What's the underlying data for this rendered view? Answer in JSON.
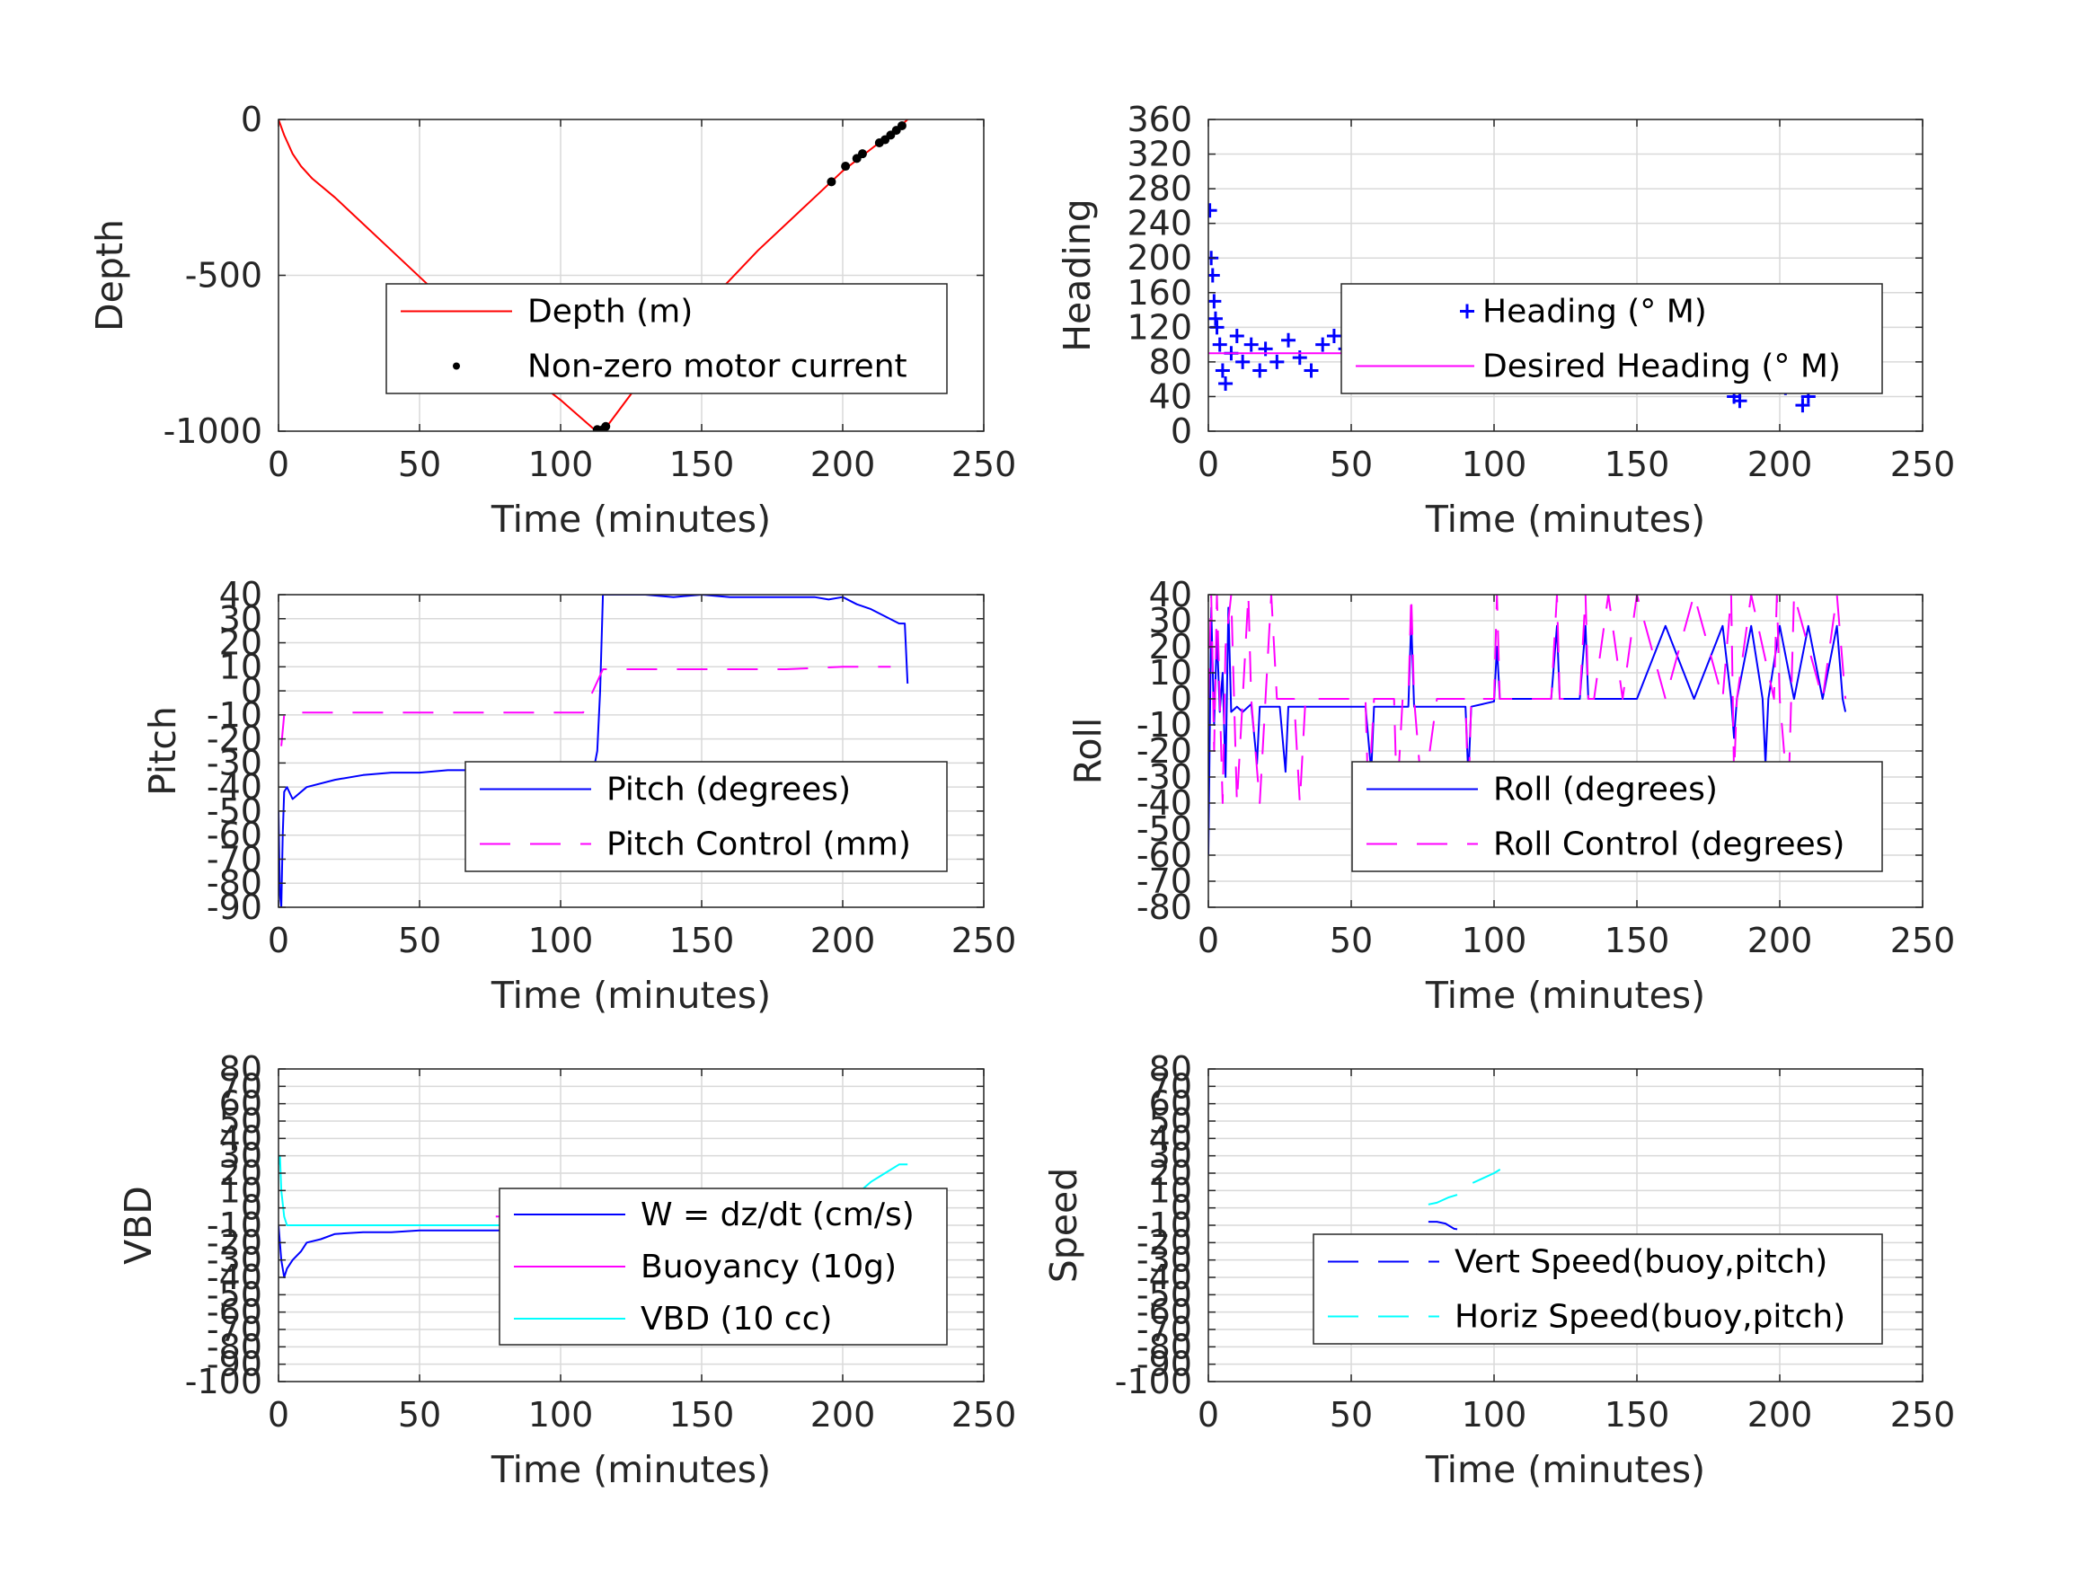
{
  "chart_data": [
    {
      "type": "line",
      "ylabel": "Depth",
      "xlabel": "Time (minutes)",
      "xlim": [
        0,
        250
      ],
      "ylim": [
        -1000,
        0
      ],
      "xticks": [
        "0",
        "50",
        "100",
        "150",
        "200",
        "250"
      ],
      "yticks": [
        "-1000",
        "-500",
        "0"
      ],
      "grid": true,
      "legend_position": "lower-right",
      "series": [
        {
          "name": "Depth (m)",
          "color": "#ff0000",
          "style": "solid",
          "x": [
            0,
            2,
            5,
            8,
            12,
            20,
            40,
            60,
            80,
            100,
            112,
            114,
            116,
            130,
            150,
            170,
            190,
            200,
            210,
            220,
            223
          ],
          "y": [
            0,
            -50,
            -110,
            -150,
            -190,
            -250,
            -420,
            -590,
            -760,
            -900,
            -995,
            -1000,
            -990,
            -820,
            -610,
            -420,
            -250,
            -165,
            -95,
            -25,
            0
          ]
        },
        {
          "name": "Non-zero motor current",
          "color": "#000000",
          "style": "dot",
          "x": [
            113,
            114,
            115,
            116,
            196,
            201,
            205,
            207,
            213,
            215,
            217,
            219,
            221
          ],
          "y": [
            -995,
            -1000,
            -995,
            -985,
            -200,
            -150,
            -125,
            -110,
            -75,
            -65,
            -50,
            -35,
            -20
          ]
        }
      ]
    },
    {
      "type": "scatter",
      "ylabel": "Heading",
      "xlabel": "Time (minutes)",
      "xlim": [
        0,
        250
      ],
      "ylim": [
        0,
        360
      ],
      "xticks": [
        "0",
        "50",
        "100",
        "150",
        "200",
        "250"
      ],
      "yticks": [
        "0",
        "40",
        "80",
        "120",
        "160",
        "200",
        "240",
        "280",
        "320",
        "360"
      ],
      "grid": true,
      "legend_position": "center-right",
      "series": [
        {
          "name": "Heading (° M)",
          "color": "#0000ff",
          "style": "plus",
          "x": [
            0.5,
            1,
            1.5,
            2,
            2.5,
            3,
            4,
            5,
            6,
            8,
            10,
            12,
            15,
            18,
            20,
            24,
            28,
            32,
            36,
            40,
            44,
            48,
            52,
            56,
            60,
            65,
            70,
            75,
            80,
            85,
            90,
            95,
            100,
            105,
            110,
            115,
            120,
            125,
            130,
            135,
            140,
            145,
            150,
            155,
            160,
            165,
            170,
            175,
            180,
            184,
            186,
            188,
            190,
            194,
            198,
            202,
            206,
            208,
            210,
            214,
            218,
            222
          ],
          "y": [
            255,
            200,
            180,
            150,
            130,
            120,
            100,
            70,
            55,
            90,
            110,
            80,
            100,
            70,
            95,
            80,
            105,
            85,
            70,
            100,
            110,
            95,
            80,
            90,
            85,
            100,
            80,
            90,
            85,
            95,
            75,
            90,
            105,
            95,
            85,
            100,
            80,
            110,
            70,
            95,
            60,
            100,
            75,
            110,
            65,
            100,
            70,
            105,
            60,
            40,
            35,
            60,
            100,
            70,
            110,
            50,
            60,
            30,
            40,
            90,
            110,
            80
          ]
        },
        {
          "name": "Desired Heading (° M)",
          "color": "#ff00ff",
          "style": "solid",
          "x": [
            0,
            223
          ],
          "y": [
            90,
            90
          ]
        }
      ]
    },
    {
      "type": "line",
      "ylabel": "Pitch",
      "xlabel": "Time (minutes)",
      "xlim": [
        0,
        250
      ],
      "ylim": [
        -90,
        40
      ],
      "xticks": [
        "0",
        "50",
        "100",
        "150",
        "200",
        "250"
      ],
      "yticks": [
        "-90",
        "-80",
        "-70",
        "-60",
        "-50",
        "-40",
        "-30",
        "-20",
        "-10",
        "0",
        "10",
        "20",
        "30",
        "40"
      ],
      "grid": true,
      "legend_position": "lower-right",
      "series": [
        {
          "name": "Pitch (degrees)",
          "color": "#0000ff",
          "style": "solid",
          "x": [
            0,
            0.5,
            1,
            1.5,
            2,
            3,
            5,
            10,
            20,
            30,
            40,
            50,
            60,
            70,
            80,
            90,
            100,
            105,
            110,
            112,
            113,
            114,
            115,
            120,
            130,
            140,
            150,
            160,
            170,
            180,
            190,
            195,
            200,
            205,
            210,
            215,
            220,
            222,
            223
          ],
          "y": [
            -50,
            -85,
            -90,
            -60,
            -42,
            -40,
            -45,
            -40,
            -37,
            -35,
            -34,
            -34,
            -33,
            -33,
            -32,
            -33,
            -33,
            -32,
            -32,
            -31,
            -25,
            0,
            40,
            40,
            40,
            39,
            40,
            39,
            39,
            39,
            39,
            38,
            39,
            36,
            34,
            31,
            28,
            28,
            3
          ]
        },
        {
          "name": "Pitch Control (mm)",
          "color": "#ff00ff",
          "style": "dashed",
          "x": [
            1,
            2,
            3,
            5,
            10,
            30,
            50,
            70,
            90,
            105,
            107,
            108,
            115,
            116,
            120,
            140,
            160,
            180,
            200,
            215,
            217
          ],
          "y": [
            -23,
            -10,
            -9,
            -9,
            -9,
            -9,
            -9,
            -9,
            -9,
            -9,
            -9,
            -9,
            9,
            9,
            9,
            9,
            9,
            9,
            10,
            10,
            10
          ]
        }
      ]
    },
    {
      "type": "line",
      "ylabel": "Roll",
      "xlabel": "Time (minutes)",
      "xlim": [
        0,
        250
      ],
      "ylim": [
        -80,
        40
      ],
      "xticks": [
        "0",
        "50",
        "100",
        "150",
        "200",
        "250"
      ],
      "yticks": [
        "-80",
        "-70",
        "-60",
        "-50",
        "-40",
        "-30",
        "-20",
        "-10",
        "0",
        "10",
        "20",
        "30",
        "40"
      ],
      "grid": true,
      "legend_position": "lower-right",
      "series": [
        {
          "name": "Roll (degrees)",
          "color": "#0000ff",
          "style": "solid",
          "x": [
            0,
            1,
            2,
            3,
            4,
            5,
            6,
            7,
            8,
            10,
            12,
            15,
            17,
            18,
            20,
            25,
            27,
            28,
            30,
            35,
            40,
            50,
            55,
            57,
            58,
            60,
            65,
            70,
            71,
            72,
            75,
            80,
            85,
            90,
            91,
            92,
            100,
            101,
            102,
            103,
            110,
            120,
            122,
            123,
            125,
            130,
            132,
            133,
            135,
            140,
            150,
            160,
            170,
            180,
            183,
            184,
            185,
            190,
            194,
            195,
            196,
            200,
            205,
            210,
            215,
            220,
            222,
            223
          ],
          "y": [
            -60,
            35,
            -10,
            25,
            -5,
            10,
            -30,
            35,
            -5,
            -3,
            -5,
            -2,
            -25,
            -3,
            -3,
            -3,
            -28,
            -3,
            -3,
            -3,
            -3,
            -3,
            -3,
            -28,
            -3,
            -3,
            -3,
            -3,
            30,
            -3,
            -3,
            -3,
            -3,
            -3,
            -30,
            -3,
            -1,
            20,
            0,
            0,
            0,
            0,
            28,
            0,
            0,
            0,
            28,
            0,
            0,
            0,
            0,
            28,
            0,
            28,
            0,
            -15,
            0,
            28,
            0,
            -25,
            0,
            28,
            0,
            28,
            0,
            28,
            0,
            -5
          ]
        },
        {
          "name": "Roll Control (degrees)",
          "color": "#ff00ff",
          "style": "dashed",
          "x": [
            0,
            1,
            2,
            3,
            5,
            6,
            8,
            10,
            12,
            14,
            15,
            18,
            20,
            22,
            24,
            30,
            32,
            34,
            40,
            50,
            55,
            56,
            58,
            60,
            65,
            66,
            68,
            70,
            71,
            72,
            75,
            80,
            85,
            90,
            91,
            92,
            100,
            101,
            102,
            103,
            120,
            122,
            123,
            125,
            130,
            132,
            133,
            135,
            140,
            145,
            150,
            160,
            170,
            180,
            183,
            184,
            185,
            190,
            198,
            199,
            200,
            203,
            204,
            205,
            215,
            220,
            223
          ],
          "y": [
            0,
            40,
            -20,
            40,
            -40,
            20,
            40,
            -40,
            0,
            40,
            0,
            -40,
            0,
            40,
            0,
            0,
            -40,
            0,
            0,
            0,
            0,
            -40,
            0,
            0,
            0,
            -40,
            0,
            0,
            40,
            0,
            -40,
            0,
            0,
            0,
            -40,
            0,
            0,
            40,
            0,
            0,
            0,
            40,
            0,
            0,
            0,
            40,
            0,
            0,
            40,
            0,
            40,
            0,
            40,
            0,
            40,
            -30,
            0,
            40,
            0,
            40,
            0,
            -40,
            0,
            40,
            0,
            40,
            0
          ]
        }
      ]
    },
    {
      "type": "line",
      "ylabel": "VBD",
      "xlabel": "Time (minutes)",
      "xlim": [
        0,
        250
      ],
      "ylim": [
        -100,
        80
      ],
      "xticks": [
        "0",
        "50",
        "100",
        "150",
        "200",
        "250"
      ],
      "yticks": [
        "-100",
        "-90",
        "-80",
        "-70",
        "-60",
        "-50",
        "-40",
        "-30",
        "-20",
        "-10",
        "0",
        "10",
        "20",
        "30",
        "40",
        "50",
        "60",
        "70",
        "80"
      ],
      "grid": true,
      "legend_position": "lower-right",
      "series": [
        {
          "name": "W = dz/dt (cm/s)",
          "color": "#0000ff",
          "style": "solid",
          "x": [
            0,
            1,
            2,
            3,
            5,
            8,
            10,
            15,
            20,
            30,
            40,
            50,
            60,
            70,
            80,
            90,
            100,
            105,
            110,
            112,
            114,
            115,
            120,
            130,
            140,
            150,
            160,
            170,
            180,
            190,
            200,
            210,
            215,
            220,
            222,
            223
          ],
          "y": [
            -10,
            -30,
            -40,
            -35,
            -30,
            -25,
            -20,
            -18,
            -15,
            -14,
            -14,
            -13,
            -13,
            -13,
            -13,
            -13,
            -13,
            -12,
            -12,
            -12,
            0,
            8,
            9,
            8,
            7,
            7,
            6,
            5,
            5,
            5,
            5,
            5,
            4,
            3,
            5,
            0
          ]
        },
        {
          "name": "Buoyancy (10g)",
          "color": "#ff00ff",
          "style": "solid",
          "x": [
            77,
            80,
            85,
            90,
            95,
            100,
            105,
            107
          ],
          "y": [
            -5,
            -5,
            -7,
            -10,
            -13,
            -16,
            -20,
            -20
          ]
        },
        {
          "name": "VBD (10 cc)",
          "color": "#00ffff",
          "style": "solid",
          "x": [
            0,
            0.5,
            1,
            2,
            3,
            10,
            30,
            50,
            70,
            90,
            110,
            112,
            114,
            115,
            120,
            150,
            180,
            195,
            200,
            205,
            210,
            215,
            220,
            223
          ],
          "y": [
            25,
            30,
            10,
            -5,
            -10,
            -10,
            -10,
            -10,
            -10,
            -10,
            -10,
            -10,
            0,
            3,
            3,
            3,
            3,
            3,
            4,
            8,
            15,
            20,
            25,
            25
          ]
        }
      ]
    },
    {
      "type": "line",
      "ylabel": "Speed",
      "xlabel": "Time (minutes)",
      "xlim": [
        0,
        250
      ],
      "ylim": [
        -100,
        80
      ],
      "xticks": [
        "0",
        "50",
        "100",
        "150",
        "200",
        "250"
      ],
      "yticks": [
        "-100",
        "-90",
        "-80",
        "-70",
        "-60",
        "-50",
        "-40",
        "-30",
        "-20",
        "-10",
        "0",
        "10",
        "20",
        "30",
        "40",
        "50",
        "60",
        "70",
        "80"
      ],
      "grid": true,
      "legend_position": "lower-right",
      "series": [
        {
          "name": "Vert Speed(buoy,pitch)",
          "color": "#0000ff",
          "style": "dashed",
          "x": [
            77,
            80,
            83,
            86,
            90,
            95,
            100,
            103
          ],
          "y": [
            -8,
            -8,
            -9,
            -12,
            -13,
            -16,
            -20,
            -22
          ]
        },
        {
          "name": "Horiz Speed(buoy,pitch)",
          "color": "#00ffff",
          "style": "dashed",
          "x": [
            77,
            80,
            84,
            88,
            92,
            96,
            100,
            103
          ],
          "y": [
            2,
            3,
            6,
            8,
            14,
            17,
            20,
            23
          ]
        }
      ]
    }
  ]
}
